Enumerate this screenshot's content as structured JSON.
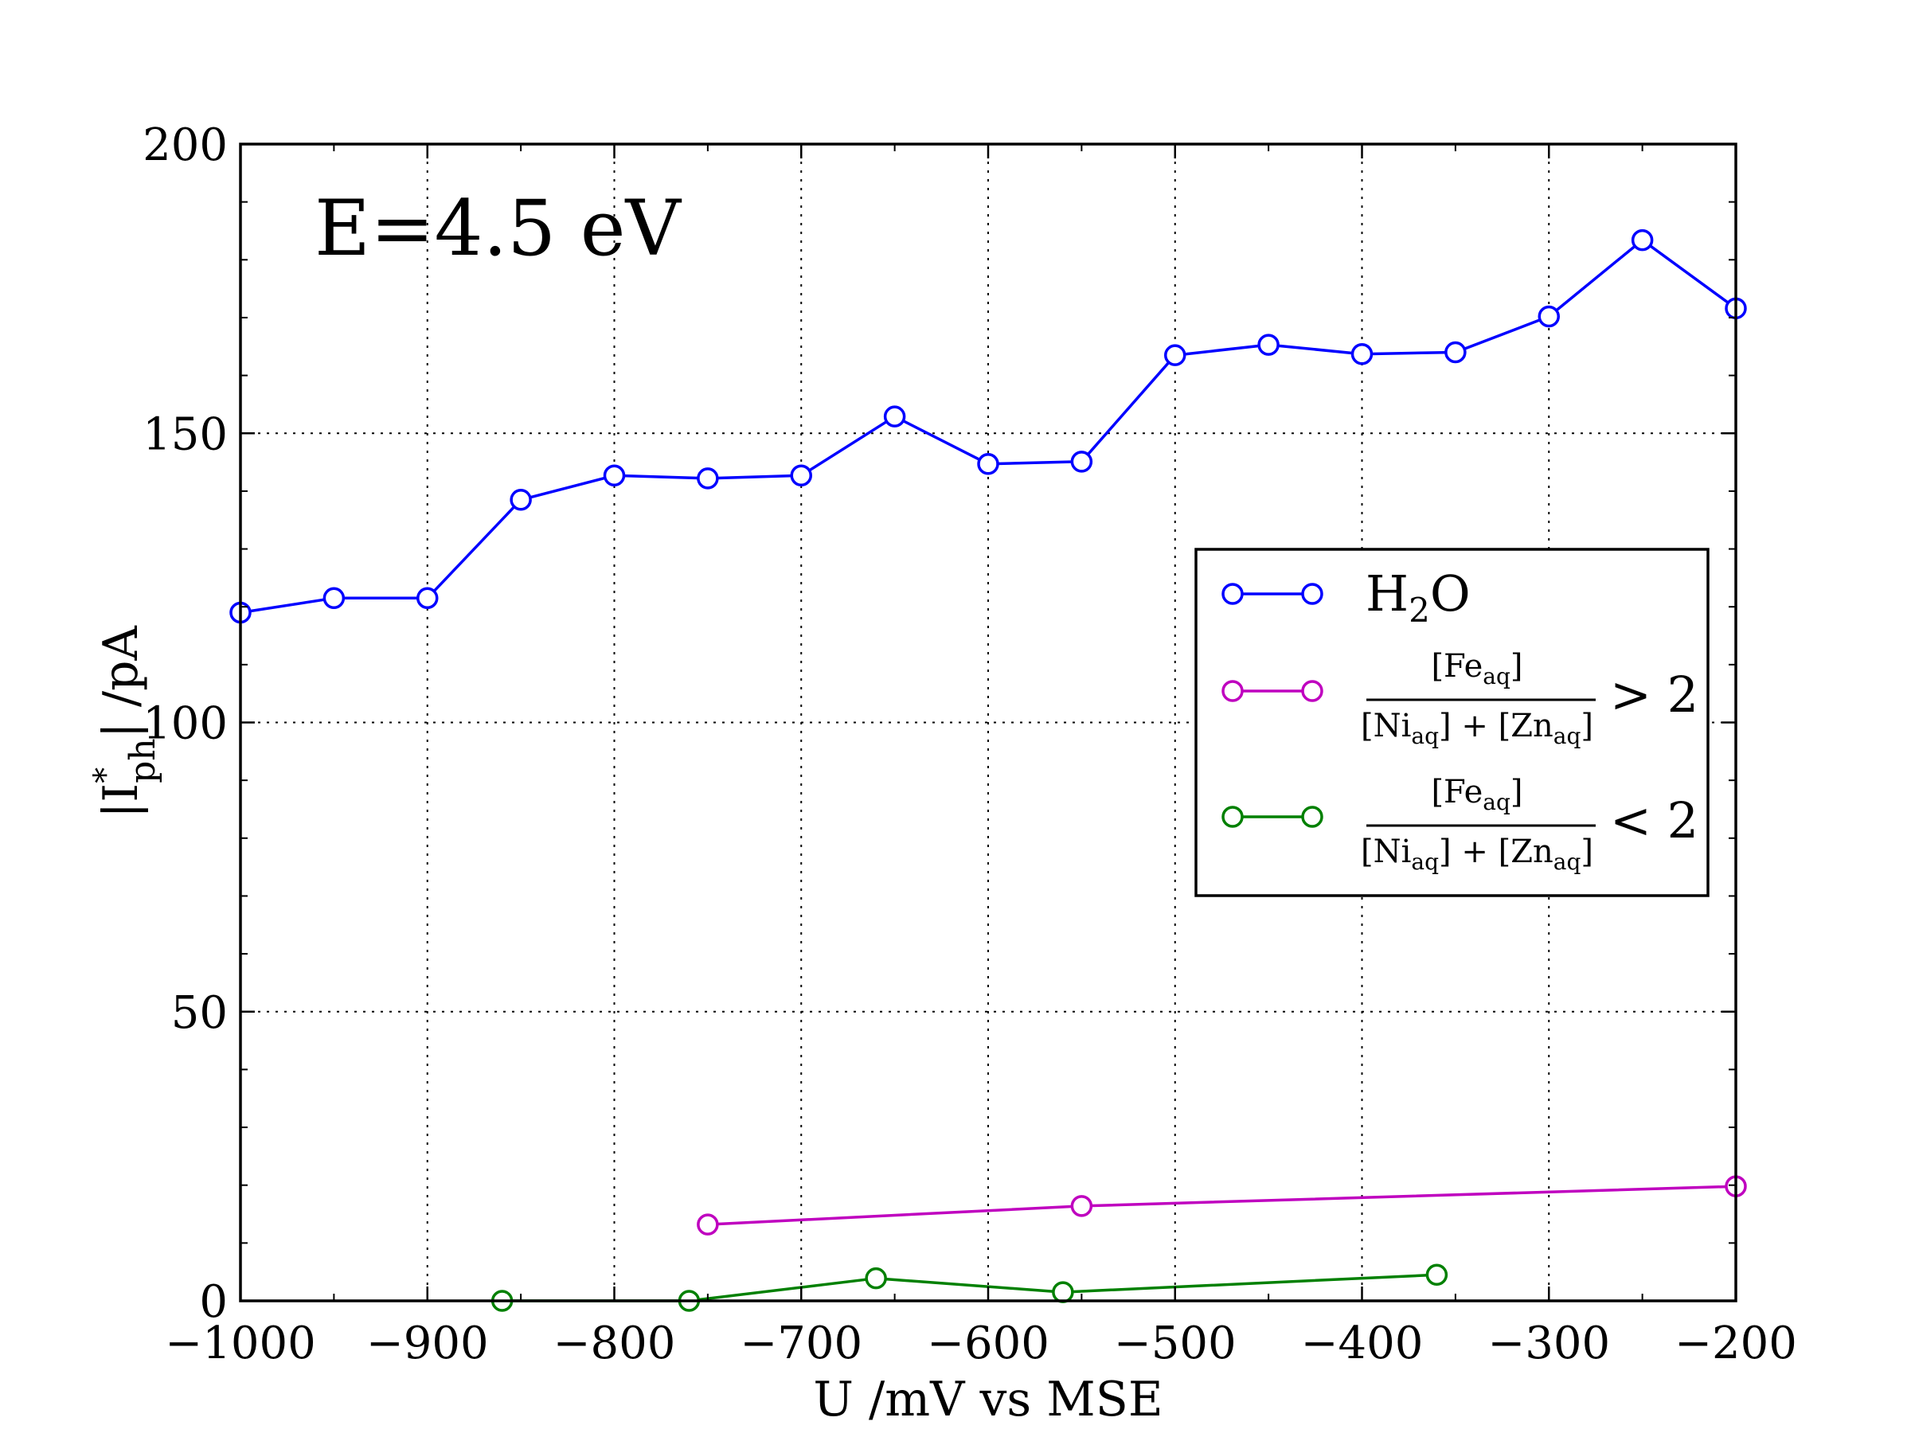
{
  "chart_data": {
    "type": "line",
    "annotation": "E=4.5 eV",
    "xlabel": "U /mV vs MSE",
    "ylabel": "|I*ph| /pA",
    "xlim": [
      -1000,
      -200
    ],
    "ylim": [
      0,
      200
    ],
    "xticks": [
      -1000,
      -900,
      -800,
      -700,
      -600,
      -500,
      -400,
      -300,
      -200
    ],
    "yticks": [
      0,
      50,
      100,
      150,
      200
    ],
    "xtick_labels": [
      "−1000",
      "−900",
      "−800",
      "−700",
      "−600",
      "−500",
      "−400",
      "−300",
      "−200"
    ],
    "ytick_labels": [
      "0",
      "50",
      "100",
      "150",
      "200"
    ],
    "grid": true,
    "legend_position": "right",
    "series": [
      {
        "name": "H2O",
        "color": "#0000ff",
        "x": [
          -1000,
          -950,
          -900,
          -850,
          -800,
          -750,
          -700,
          -650,
          -600,
          -550,
          -500,
          -450,
          -400,
          -350,
          -300,
          -250,
          -200
        ],
        "y": [
          119,
          121.5,
          121.5,
          138.5,
          142.7,
          142.2,
          142.7,
          152.9,
          144.7,
          145.1,
          163.5,
          165.3,
          163.7,
          164,
          170.2,
          183.4,
          171.6
        ]
      },
      {
        "name": "[Fe_aq]/([Ni_aq]+[Zn_aq]) > 2",
        "color": "#bf00bf",
        "x": [
          -750,
          -550,
          -200
        ],
        "y": [
          13.2,
          16.4,
          19.8
        ]
      },
      {
        "name": "[Fe_aq]/([Ni_aq]+[Zn_aq]) < 2",
        "color": "#008000",
        "x": [
          -860,
          -760,
          -660,
          -560,
          -360
        ],
        "y": [
          0,
          0,
          3.9,
          1.5,
          4.5
        ]
      }
    ]
  }
}
